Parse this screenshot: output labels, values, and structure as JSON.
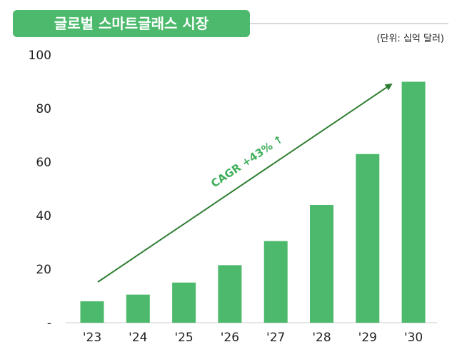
{
  "chart_data": {
    "type": "bar",
    "title": "글로벌 스마트글래스 시장",
    "unit_label": "(단위: 십억 달러)",
    "categories": [
      "'23",
      "'24",
      "'25",
      "'26",
      "'27",
      "'28",
      "'29",
      "'30"
    ],
    "values": [
      8,
      10.5,
      15,
      21.5,
      30.5,
      44,
      63,
      90
    ],
    "y_ticks": [
      "-",
      "20",
      "40",
      "60",
      "80",
      "100"
    ],
    "ylim": [
      0,
      100
    ],
    "grid": false,
    "annotation": "CAGR +43% ↑"
  },
  "colors": {
    "bar": "#4cb96c",
    "title_bg": "#4cb96c",
    "title_text": "#ffffff",
    "title_rule": "#cccccc",
    "arrow": "#2e7d32",
    "annotation": "#3fae5a",
    "axis_text": "#222222",
    "baseline": "#cfcfcf"
  }
}
